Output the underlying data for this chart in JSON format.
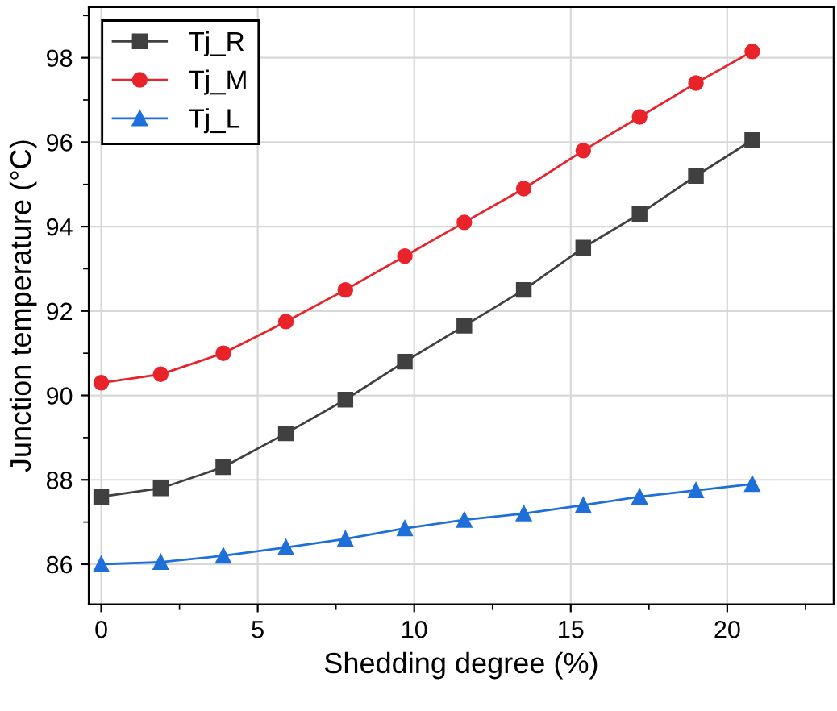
{
  "chart_data": {
    "type": "line",
    "xlabel": "Shedding degree (%)",
    "ylabel": "Junction temperature (°C)",
    "x": [
      0,
      1.9,
      3.9,
      5.9,
      7.8,
      9.7,
      11.6,
      13.5,
      15.4,
      17.2,
      19.0,
      20.8
    ],
    "series": [
      {
        "name": "Tj_R",
        "color": "#404040",
        "marker": "square",
        "values": [
          87.6,
          87.8,
          88.3,
          89.1,
          89.9,
          90.8,
          91.65,
          92.5,
          93.5,
          94.3,
          95.2,
          96.05
        ]
      },
      {
        "name": "Tj_M",
        "color": "#e8232a",
        "marker": "circle",
        "values": [
          90.3,
          90.5,
          91.0,
          91.75,
          92.5,
          93.3,
          94.1,
          94.9,
          95.8,
          96.6,
          97.4,
          98.15
        ]
      },
      {
        "name": "Tj_L",
        "color": "#1e6fd9",
        "marker": "triangle",
        "values": [
          86.0,
          86.05,
          86.2,
          86.4,
          86.6,
          86.85,
          87.05,
          87.2,
          87.4,
          87.6,
          87.75,
          87.9
        ]
      }
    ],
    "xlim": [
      -0.4,
      23.4
    ],
    "xticks": [
      0,
      5,
      10,
      15,
      20
    ],
    "ylim": [
      85.05,
      99.2
    ],
    "yticks": [
      86,
      88,
      90,
      92,
      94,
      96,
      98
    ],
    "grid": true,
    "legend": "top left",
    "line_style": "solid"
  }
}
